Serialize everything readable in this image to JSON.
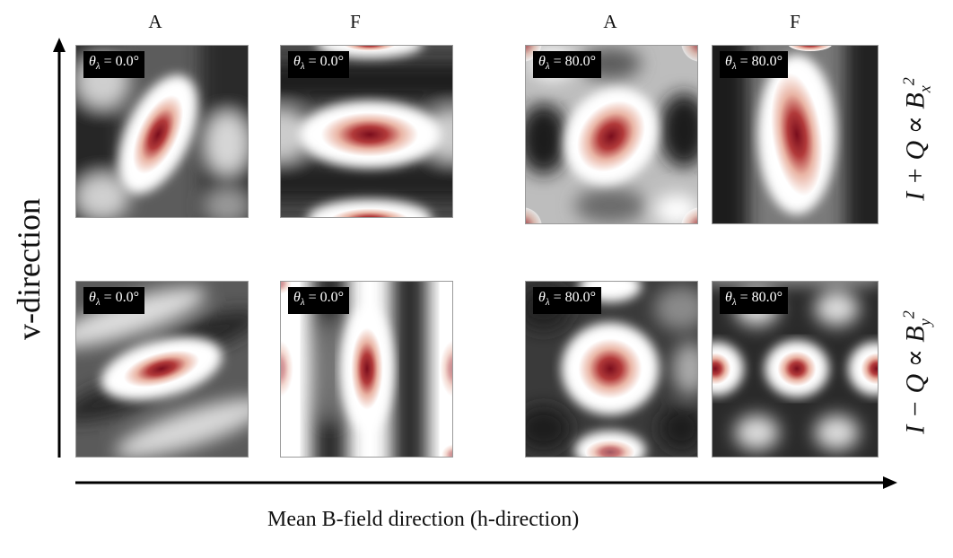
{
  "columns": {
    "left_a": "A",
    "left_f": "F",
    "right_a": "A",
    "right_f": "F"
  },
  "panel_labels": {
    "theta_0": "θλ = 0.0°",
    "theta_80": "θλ = 80.0°"
  },
  "axes": {
    "vertical": "v-direction",
    "horizontal": "Mean B-field direction  (h-direction)"
  },
  "rows": {
    "top": "I + Q ∝ Bx²",
    "bottom": "I − Q ∝ By²"
  },
  "colormap": [
    "#1e1e1e",
    "#ffffff",
    "#7a0d1c"
  ]
}
